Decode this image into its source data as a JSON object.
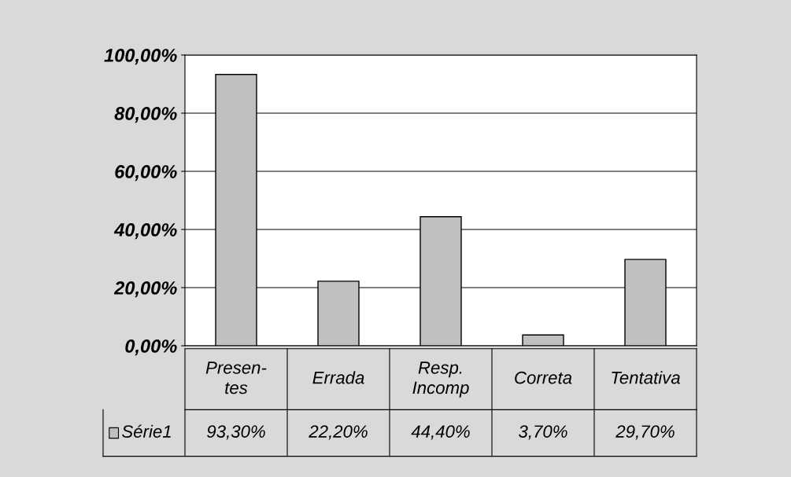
{
  "chart_data": {
    "type": "bar",
    "categories": [
      "Presen-\ntes",
      "Errada",
      "Resp.\nIncomp",
      "Correta",
      "Tentativa"
    ],
    "series": [
      {
        "name": "Série1",
        "color": "#c0c0c0",
        "values": [
          93.3,
          22.2,
          44.4,
          3.7,
          29.7
        ],
        "value_labels": [
          "93,30%",
          "22,20%",
          "44,40%",
          "3,70%",
          "29,70%"
        ]
      }
    ],
    "ylim": [
      0,
      100
    ],
    "yticks": [
      {
        "value": 0,
        "label": "0,00%"
      },
      {
        "value": 20,
        "label": "20,00%"
      },
      {
        "value": 40,
        "label": "40,00%"
      },
      {
        "value": 60,
        "label": "60,00%"
      },
      {
        "value": 80,
        "label": "80,00%"
      },
      {
        "value": 100,
        "label": "100,00%"
      }
    ],
    "grid": "y",
    "legend": "bottom left"
  }
}
